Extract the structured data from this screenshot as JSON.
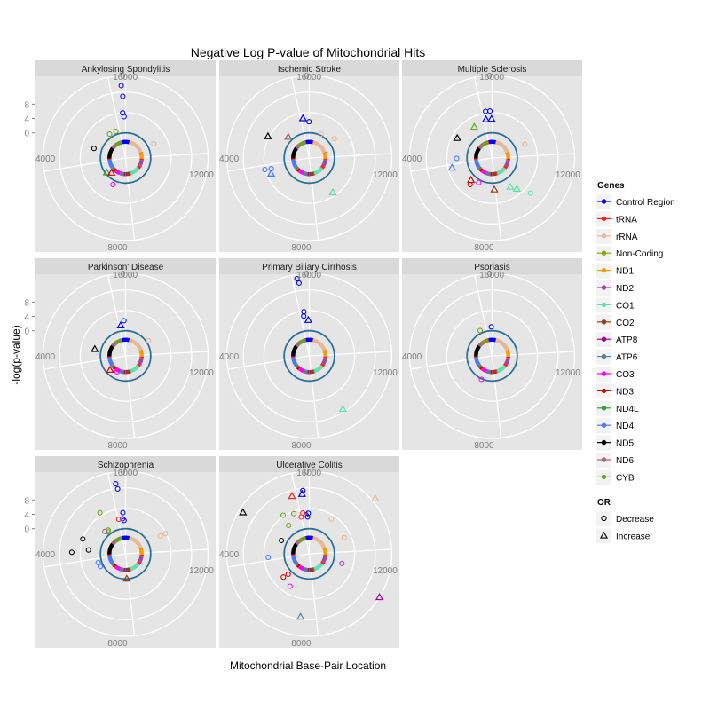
{
  "chart_data": {
    "type": "scatter",
    "coordinate_system": "polar",
    "title": "Negative Log P-value of Mitochondrial Hits",
    "xlabel": "Mitochondrial Base-Pair Location",
    "ylabel": "-log(p-value)",
    "angle_range_bp": [
      0,
      16569
    ],
    "angle_ticks": [
      "0",
      "4000",
      "8000",
      "12000",
      "16000"
    ],
    "radial_ticks": [
      "0",
      "4",
      "8"
    ],
    "radial_range": [
      -7,
      16
    ],
    "legend_genes": {
      "title": "Genes",
      "items": [
        {
          "name": "Control Region",
          "color": "#0000ff"
        },
        {
          "name": "tRNA",
          "color": "#ff2020"
        },
        {
          "name": "rRNA",
          "color": "#e8b896"
        },
        {
          "name": "Non-Coding",
          "color": "#8fa600"
        },
        {
          "name": "ND1",
          "color": "#f0a000"
        },
        {
          "name": "ND2",
          "color": "#9a4aa8"
        },
        {
          "name": "CO1",
          "color": "#60e0b0"
        },
        {
          "name": "CO2",
          "color": "#8a4020"
        },
        {
          "name": "ATP8",
          "color": "#a000a0"
        },
        {
          "name": "ATP6",
          "color": "#5e7f8f"
        },
        {
          "name": "CO3",
          "color": "#ff00ff"
        },
        {
          "name": "ND3",
          "color": "#cc0000"
        },
        {
          "name": "ND4L",
          "color": "#3a9a3a"
        },
        {
          "name": "ND4",
          "color": "#4a78ff"
        },
        {
          "name": "ND5",
          "color": "#000000"
        },
        {
          "name": "ND6",
          "color": "#a06878"
        },
        {
          "name": "CYB",
          "color": "#6ea020"
        }
      ]
    },
    "legend_or": {
      "title": "OR",
      "items": [
        {
          "name": "Decrease",
          "shape": "circle"
        },
        {
          "name": "Increase",
          "shape": "triangle"
        }
      ]
    },
    "gene_segments_bp": [
      {
        "gene": "Control Region",
        "start": 0,
        "end": 576
      },
      {
        "gene": "tRNA",
        "start": 577,
        "end": 647
      },
      {
        "gene": "rRNA",
        "start": 648,
        "end": 3229
      },
      {
        "gene": "tRNA",
        "start": 3230,
        "end": 3306
      },
      {
        "gene": "ND1",
        "start": 3307,
        "end": 4262
      },
      {
        "gene": "tRNA",
        "start": 4263,
        "end": 4469
      },
      {
        "gene": "ND2",
        "start": 4470,
        "end": 5511
      },
      {
        "gene": "tRNA",
        "start": 5512,
        "end": 5903
      },
      {
        "gene": "CO1",
        "start": 5904,
        "end": 7445
      },
      {
        "gene": "tRNA",
        "start": 7446,
        "end": 7585
      },
      {
        "gene": "CO2",
        "start": 7586,
        "end": 8269
      },
      {
        "gene": "tRNA",
        "start": 8270,
        "end": 8365
      },
      {
        "gene": "ATP8",
        "start": 8366,
        "end": 8572
      },
      {
        "gene": "ATP6",
        "start": 8573,
        "end": 9207
      },
      {
        "gene": "CO3",
        "start": 9208,
        "end": 9990
      },
      {
        "gene": "tRNA",
        "start": 9991,
        "end": 10058
      },
      {
        "gene": "ND3",
        "start": 10059,
        "end": 10404
      },
      {
        "gene": "tRNA",
        "start": 10405,
        "end": 10469
      },
      {
        "gene": "ND4L",
        "start": 10470,
        "end": 10766
      },
      {
        "gene": "ND4",
        "start": 10767,
        "end": 12137
      },
      {
        "gene": "tRNA",
        "start": 12138,
        "end": 12336
      },
      {
        "gene": "ND5",
        "start": 12337,
        "end": 14148
      },
      {
        "gene": "ND6",
        "start": 14149,
        "end": 14673
      },
      {
        "gene": "tRNA",
        "start": 14674,
        "end": 14746
      },
      {
        "gene": "CYB",
        "start": 14747,
        "end": 15887
      },
      {
        "gene": "tRNA",
        "start": 15888,
        "end": 16023
      },
      {
        "gene": "Control Region",
        "start": 16024,
        "end": 16569
      }
    ],
    "panels": [
      {
        "name": "Ankylosing Spondylitis",
        "points": [
          {
            "bp": 16410,
            "y": 13.2,
            "gene": "Control Region",
            "or": "Decrease"
          },
          {
            "bp": 16450,
            "y": 10.2,
            "gene": "Control Region",
            "or": "Decrease"
          },
          {
            "bp": 16400,
            "y": 5.6,
            "gene": "Control Region",
            "or": "Decrease"
          },
          {
            "bp": 16470,
            "y": 4.5,
            "gene": "Control Region",
            "or": "Decrease"
          },
          {
            "bp": 15010,
            "y": 1.0,
            "gene": "CYB",
            "or": "Decrease"
          },
          {
            "bp": 15650,
            "y": 0.9,
            "gene": "CYB",
            "or": "Decrease"
          },
          {
            "bp": 13200,
            "y": 2.2,
            "gene": "ND5",
            "or": "Decrease"
          },
          {
            "bp": 2900,
            "y": 1.8,
            "gene": "rRNA",
            "or": "Decrease"
          },
          {
            "bp": 10700,
            "y": -0.4,
            "gene": "ND4L",
            "or": "Increase"
          },
          {
            "bp": 10300,
            "y": -1.3,
            "gene": "ND3",
            "or": "Increase"
          },
          {
            "bp": 9450,
            "y": 1.2,
            "gene": "CO3",
            "or": "Decrease"
          }
        ]
      },
      {
        "name": "Ischemic Stroke",
        "points": [
          {
            "bp": 16150,
            "y": 4.2,
            "gene": "Control Region",
            "or": "Increase"
          },
          {
            "bp": 16550,
            "y": 3.1,
            "gene": "Control Region",
            "or": "Decrease"
          },
          {
            "bp": 14500,
            "y": 1.3,
            "gene": "ND6",
            "or": "Increase"
          },
          {
            "bp": 13700,
            "y": 6.0,
            "gene": "ND5",
            "or": "Increase"
          },
          {
            "bp": 11700,
            "y": 4.0,
            "gene": "ND4",
            "or": "Decrease"
          },
          {
            "bp": 11750,
            "y": 5.8,
            "gene": "ND4",
            "or": "Decrease"
          },
          {
            "bp": 11400,
            "y": 4.5,
            "gene": "ND4",
            "or": "Increase"
          },
          {
            "bp": 6700,
            "y": 4.6,
            "gene": "CO1",
            "or": "Increase"
          },
          {
            "bp": 1200,
            "y": 0.4,
            "gene": "rRNA",
            "or": "Decrease"
          },
          {
            "bp": 2400,
            "y": 1.8,
            "gene": "rRNA",
            "or": "Decrease"
          }
        ]
      },
      {
        "name": "Multiple Sclerosis",
        "points": [
          {
            "bp": 16200,
            "y": 6.1,
            "gene": "Control Region",
            "or": "Decrease"
          },
          {
            "bp": 16450,
            "y": 6.1,
            "gene": "Control Region",
            "or": "Decrease"
          },
          {
            "bp": 16150,
            "y": 3.9,
            "gene": "Control Region",
            "or": "Increase"
          },
          {
            "bp": 16530,
            "y": 3.9,
            "gene": "Control Region",
            "or": "Increase"
          },
          {
            "bp": 15200,
            "y": 3.0,
            "gene": "CYB",
            "or": "Increase"
          },
          {
            "bp": 13800,
            "y": 4.2,
            "gene": "ND5",
            "or": "Increase"
          },
          {
            "bp": 12400,
            "y": 2.9,
            "gene": "ND4",
            "or": "Decrease"
          },
          {
            "bp": 11800,
            "y": 4.5,
            "gene": "ND4",
            "or": "Increase"
          },
          {
            "bp": 10300,
            "y": 1.5,
            "gene": "ND3",
            "or": "Increase"
          },
          {
            "bp": 10100,
            "y": 2.6,
            "gene": "ND3",
            "or": "Decrease"
          },
          {
            "bp": 9600,
            "y": 0.8,
            "gene": "CO3",
            "or": "Decrease"
          },
          {
            "bp": 8100,
            "y": 1.8,
            "gene": "CO2",
            "or": "Increase"
          },
          {
            "bp": 6800,
            "y": 2.5,
            "gene": "CO1",
            "or": "Increase"
          },
          {
            "bp": 6500,
            "y": 4.0,
            "gene": "CO1",
            "or": "Increase"
          },
          {
            "bp": 6100,
            "y": 7.5,
            "gene": "CO1",
            "or": "Decrease"
          },
          {
            "bp": 3100,
            "y": 2.9,
            "gene": "rRNA",
            "or": "Decrease"
          }
        ]
      },
      {
        "name": "Parkinson' Disease",
        "points": [
          {
            "bp": 16450,
            "y": 2.8,
            "gene": "Control Region",
            "or": "Decrease"
          },
          {
            "bp": 16150,
            "y": 1.6,
            "gene": "Control Region",
            "or": "Increase"
          },
          {
            "bp": 13000,
            "y": 1.8,
            "gene": "ND5",
            "or": "Increase"
          },
          {
            "bp": 10500,
            "y": -1.2,
            "gene": "ND3",
            "or": "Increase"
          },
          {
            "bp": 9600,
            "y": -2.0,
            "gene": "CO3",
            "or": "Decrease"
          },
          {
            "bp": 2600,
            "y": 0.7,
            "gene": "rRNA",
            "or": "Decrease"
          }
        ]
      },
      {
        "name": "Primary Biliary Cirrhosis",
        "points": [
          {
            "bp": 16150,
            "y": 14.8,
            "gene": "Control Region",
            "or": "Decrease"
          },
          {
            "bp": 16200,
            "y": 13.5,
            "gene": "Control Region",
            "or": "Decrease"
          },
          {
            "bp": 16250,
            "y": 5.4,
            "gene": "Control Region",
            "or": "Decrease"
          },
          {
            "bp": 16200,
            "y": 4.2,
            "gene": "Control Region",
            "or": "Decrease"
          },
          {
            "bp": 16500,
            "y": 3.0,
            "gene": "Control Region",
            "or": "Increase"
          },
          {
            "bp": 6800,
            "y": 10.5,
            "gene": "CO1",
            "or": "Increase"
          }
        ]
      },
      {
        "name": "Psoriasis",
        "points": [
          {
            "bp": 16500,
            "y": 1.1,
            "gene": "Control Region",
            "or": "Decrease"
          },
          {
            "bp": 15400,
            "y": 0.8,
            "gene": "CYB",
            "or": "Decrease"
          },
          {
            "bp": 9400,
            "y": 0.2,
            "gene": "CO3",
            "or": "Decrease"
          }
        ]
      },
      {
        "name": "Schizophrenia",
        "points": [
          {
            "bp": 16200,
            "y": 12.7,
            "gene": "Control Region",
            "or": "Decrease"
          },
          {
            "bp": 16250,
            "y": 11.2,
            "gene": "Control Region",
            "or": "Decrease"
          },
          {
            "bp": 16400,
            "y": 4.5,
            "gene": "Control Region",
            "or": "Decrease"
          },
          {
            "bp": 16350,
            "y": 2.8,
            "gene": "Control Region",
            "or": "Decrease"
          },
          {
            "bp": 16450,
            "y": 2.3,
            "gene": "Control Region",
            "or": "Decrease"
          },
          {
            "bp": 16050,
            "y": 2.8,
            "gene": "tRNA",
            "or": "Decrease"
          },
          {
            "bp": 15100,
            "y": 6.5,
            "gene": "CYB",
            "or": "Decrease"
          },
          {
            "bp": 14900,
            "y": 1.2,
            "gene": "CYB",
            "or": "Decrease"
          },
          {
            "bp": 14800,
            "y": 0.8,
            "gene": "CYB",
            "or": "Decrease"
          },
          {
            "bp": 14600,
            "y": 1.5,
            "gene": "ND6",
            "or": "Decrease"
          },
          {
            "bp": 13300,
            "y": 5.6,
            "gene": "ND5",
            "or": "Decrease"
          },
          {
            "bp": 12500,
            "y": 8.0,
            "gene": "ND5",
            "or": "Decrease"
          },
          {
            "bp": 12700,
            "y": 3.4,
            "gene": "ND5",
            "or": "Decrease"
          },
          {
            "bp": 11600,
            "y": 1.0,
            "gene": "ND4",
            "or": "Decrease"
          },
          {
            "bp": 11200,
            "y": 0.9,
            "gene": "ND4",
            "or": "Decrease"
          },
          {
            "bp": 8150,
            "y": -0.1,
            "gene": "CO2",
            "or": "Increase"
          },
          {
            "bp": 2900,
            "y": 3.9,
            "gene": "rRNA",
            "or": "Decrease"
          },
          {
            "bp": 2900,
            "y": 5.4,
            "gene": "rRNA",
            "or": "Decrease"
          }
        ]
      },
      {
        "name": "Ulcerative Colitis",
        "points": [
          {
            "bp": 16250,
            "y": 9.8,
            "gene": "Control Region",
            "or": "Increase"
          },
          {
            "bp": 16300,
            "y": 10.7,
            "gene": "Control Region",
            "or": "Decrease"
          },
          {
            "bp": 15800,
            "y": 9.8,
            "gene": "tRNA",
            "or": "Increase"
          },
          {
            "bp": 16350,
            "y": 3.9,
            "gene": "Control Region",
            "or": "Decrease"
          },
          {
            "bp": 16450,
            "y": 3.3,
            "gene": "Control Region",
            "or": "Decrease"
          },
          {
            "bp": 16500,
            "y": 4.3,
            "gene": "Control Region",
            "or": "Decrease"
          },
          {
            "bp": 16150,
            "y": 4.5,
            "gene": "tRNA",
            "or": "Decrease"
          },
          {
            "bp": 16000,
            "y": 3.5,
            "gene": "tRNA",
            "or": "Decrease"
          },
          {
            "bp": 15600,
            "y": 5.0,
            "gene": "CYB",
            "or": "Decrease"
          },
          {
            "bp": 15000,
            "y": 6.0,
            "gene": "CYB",
            "or": "Decrease"
          },
          {
            "bp": 14900,
            "y": 2.8,
            "gene": "CYB",
            "or": "Decrease"
          },
          {
            "bp": 13600,
            "y": 1.6,
            "gene": "ND5",
            "or": "Decrease"
          },
          {
            "bp": 13900,
            "y": 14.8,
            "gene": "ND5",
            "or": "Increase"
          },
          {
            "bp": 12200,
            "y": 4.5,
            "gene": "ND4",
            "or": "Decrease"
          },
          {
            "bp": 10500,
            "y": 2.7,
            "gene": "ND3",
            "or": "Decrease"
          },
          {
            "bp": 10400,
            "y": 1.2,
            "gene": "ND3",
            "or": "Decrease"
          },
          {
            "bp": 9700,
            "y": 3.5,
            "gene": "CO3",
            "or": "Decrease"
          },
          {
            "bp": 8650,
            "y": 10.7,
            "gene": "ATP6",
            "or": "Increase"
          },
          {
            "bp": 5600,
            "y": 16.0,
            "gene": "ATP8",
            "or": "Increase"
          },
          {
            "bp": 4900,
            "y": 2.5,
            "gene": "ND2",
            "or": "Decrease"
          },
          {
            "bp": 3000,
            "y": 3.7,
            "gene": "rRNA",
            "or": "Decrease"
          },
          {
            "bp": 2300,
            "y": 17.0,
            "gene": "rRNA",
            "or": "Increase"
          },
          {
            "bp": 1500,
            "y": 4.5,
            "gene": "rRNA",
            "or": "Decrease"
          }
        ]
      }
    ]
  }
}
